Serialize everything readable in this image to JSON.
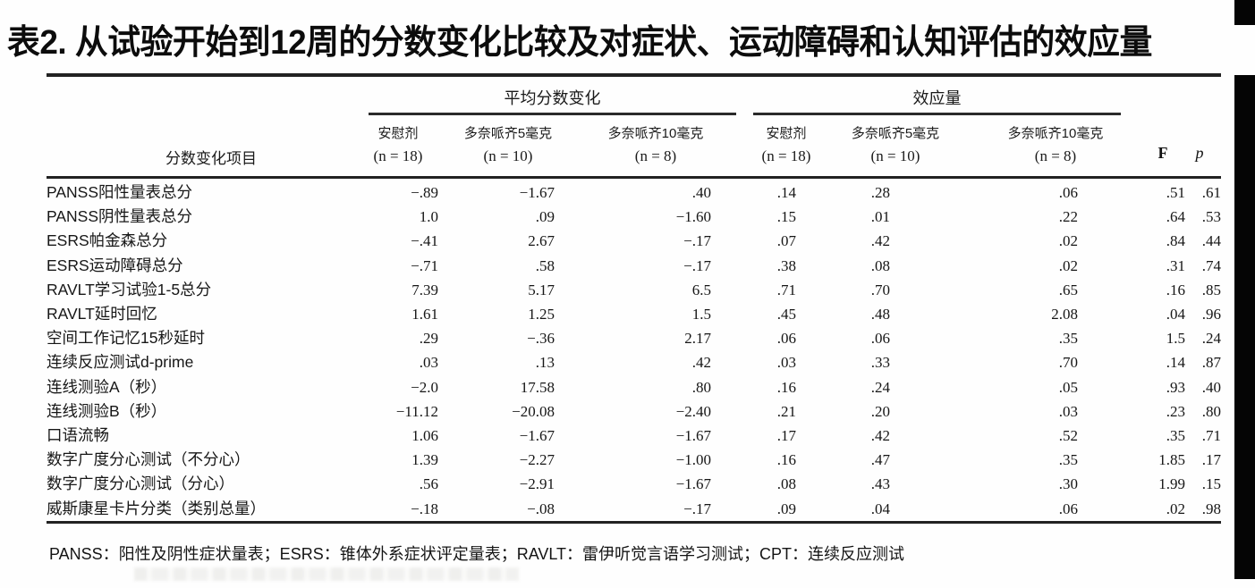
{
  "title": "表2. 从试验开始到12周的分数变化比较及对症状、运动障碍和认知评估的效应量",
  "table": {
    "item_column_header": "分数变化项目",
    "group_headers": {
      "mean": "平均分数变化",
      "effect": "效应量"
    },
    "sub_headers": {
      "mean": [
        {
          "drug": "安慰剂",
          "n": "(n = 18)"
        },
        {
          "drug": "多奈哌齐5毫克",
          "n": "(n = 10)"
        },
        {
          "drug": "多奈哌齐10毫克",
          "n": "(n = 8)"
        }
      ],
      "effect": [
        {
          "drug": "安慰剂",
          "n": "(n = 18)"
        },
        {
          "drug": "多奈哌齐5毫克",
          "n": "(n = 10)"
        },
        {
          "drug": "多奈哌齐10毫克",
          "n": "(n = 8)"
        }
      ],
      "f_label": "F",
      "p_label": "p"
    },
    "rows": [
      {
        "label": "PANSS阳性量表总分",
        "values": [
          "−.89",
          "−1.67",
          ".40",
          ".14",
          ".28",
          ".06",
          ".51",
          ".61"
        ]
      },
      {
        "label": "PANSS阴性量表总分",
        "values": [
          "1.0",
          ".09",
          "−1.60",
          ".15",
          ".01",
          ".22",
          ".64",
          ".53"
        ]
      },
      {
        "label": "ESRS帕金森总分",
        "values": [
          "−.41",
          "2.67",
          "−.17",
          ".07",
          ".42",
          ".02",
          ".84",
          ".44"
        ]
      },
      {
        "label": "ESRS运动障碍总分",
        "values": [
          "−.71",
          ".58",
          "−.17",
          ".38",
          ".08",
          ".02",
          ".31",
          ".74"
        ]
      },
      {
        "label": "RAVLT学习试验1-5总分",
        "values": [
          "7.39",
          "5.17",
          "6.5",
          ".71",
          ".70",
          ".65",
          ".16",
          ".85"
        ]
      },
      {
        "label": "RAVLT延时回忆",
        "values": [
          "1.61",
          "1.25",
          "1.5",
          ".45",
          ".48",
          "2.08",
          ".04",
          ".96"
        ]
      },
      {
        "label": "空间工作记忆15秒延时",
        "values": [
          ".29",
          "−.36",
          "2.17",
          ".06",
          ".06",
          ".35",
          "1.5",
          ".24"
        ]
      },
      {
        "label": "连续反应测试d-prime",
        "values": [
          ".03",
          ".13",
          ".42",
          ".03",
          ".33",
          ".70",
          ".14",
          ".87"
        ]
      },
      {
        "label": "连线测验A（秒）",
        "values": [
          "−2.0",
          "17.58",
          ".80",
          ".16",
          ".24",
          ".05",
          ".93",
          ".40"
        ]
      },
      {
        "label": "连线测验B（秒）",
        "values": [
          "−11.12",
          "−20.08",
          "−2.40",
          ".21",
          ".20",
          ".03",
          ".23",
          ".80"
        ]
      },
      {
        "label": "口语流畅",
        "values": [
          "1.06",
          "−1.67",
          "−1.67",
          ".17",
          ".42",
          ".52",
          ".35",
          ".71"
        ]
      },
      {
        "label": "数字广度分心测试（不分心）",
        "values": [
          "1.39",
          "−2.27",
          "−1.00",
          ".16",
          ".47",
          ".35",
          "1.85",
          ".17"
        ]
      },
      {
        "label": "数字广度分心测试（分心）",
        "values": [
          ".56",
          "−2.91",
          "−1.67",
          ".08",
          ".43",
          ".30",
          "1.99",
          ".15"
        ]
      },
      {
        "label": "威斯康星卡片分类（类别总量）",
        "values": [
          "−.18",
          "−.08",
          "−.17",
          ".09",
          ".04",
          ".06",
          ".02",
          ".98"
        ]
      }
    ]
  },
  "footnote": "PANSS：阳性及阴性症状量表；ESRS：锥体外系症状评定量表；RAVLT：雷伊听觉言语学习测试；CPT：连续反应测试"
}
